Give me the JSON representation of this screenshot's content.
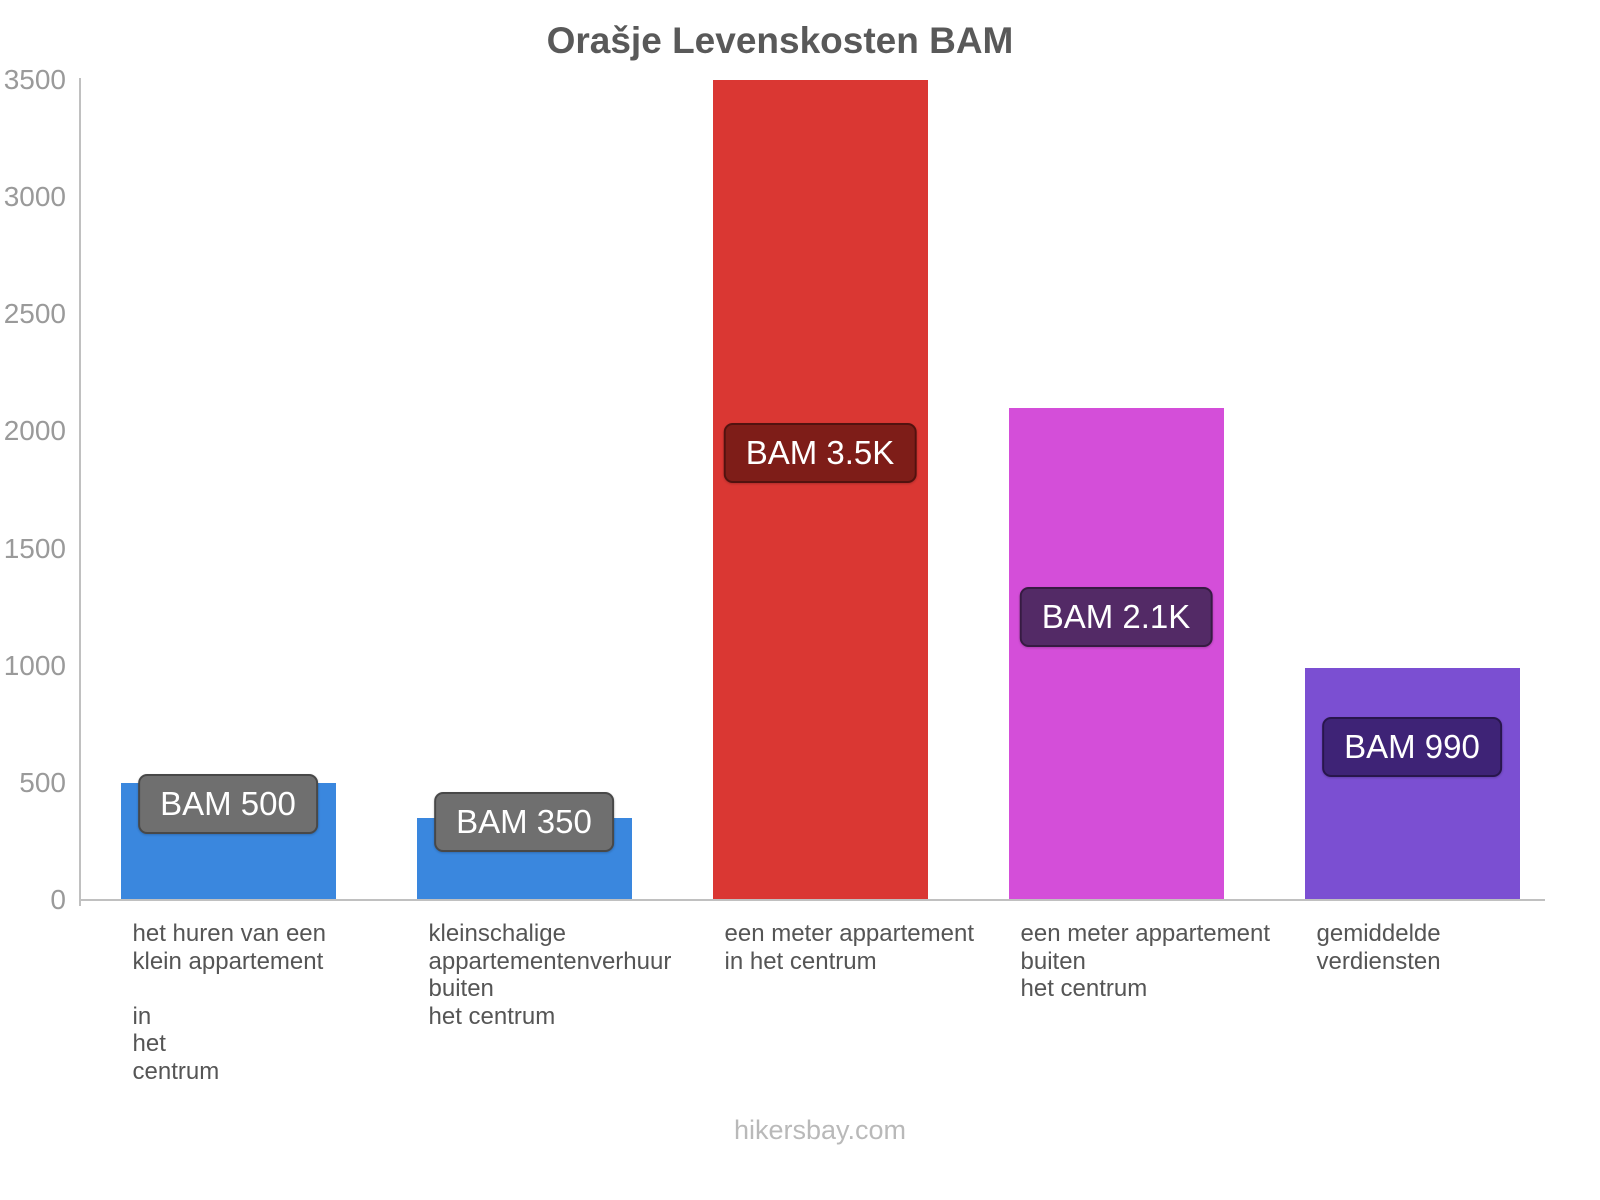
{
  "chart_data": {
    "type": "bar",
    "title": "Orašje Levenskosten BAM",
    "footer": "hikersbay.com",
    "ylabel": "",
    "xlabel": "",
    "ylim": [
      0,
      3500
    ],
    "yticks": [
      0,
      500,
      1000,
      1500,
      2000,
      2500,
      3000,
      3500
    ],
    "grid": false,
    "legend_position": "none",
    "categories": [
      "het huren van een\nklein appartement\n\nin\nhet\ncentrum",
      "kleinschalige\nappartementenverhuur\nbuiten\nhet centrum",
      "een meter appartement\nin het centrum",
      "een meter appartement\nbuiten\nhet centrum",
      "gemiddelde\nverdiensten"
    ],
    "values": [
      500,
      350,
      3500,
      2100,
      990
    ],
    "bar_labels": [
      "BAM 500",
      "BAM 350",
      "BAM 3.5K",
      "BAM 2.1K",
      "BAM 990"
    ],
    "bar_colors": [
      "#3a87de",
      "#3a87de",
      "#da3733",
      "#d44ed9",
      "#7b4fd2"
    ],
    "label_bg_colors": [
      "#6f6f6f",
      "#6f6f6f",
      "#7e1d18",
      "#532a66",
      "#3e2376"
    ]
  }
}
